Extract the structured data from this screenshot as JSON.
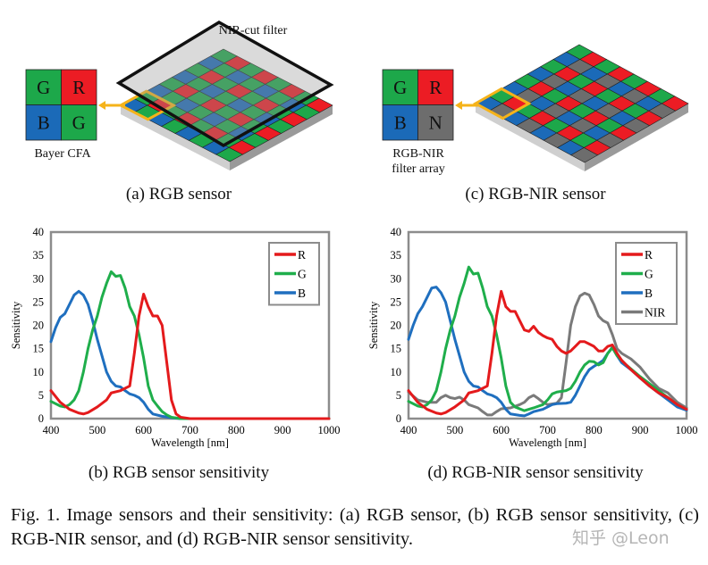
{
  "panel_a": {
    "filter_label": "NIR-cut filter",
    "cfa_label": "Bayer CFA",
    "cfa_cells": [
      "G",
      "R",
      "B",
      "G"
    ],
    "caption": "(a) RGB sensor"
  },
  "panel_c": {
    "cfa_label_1": "RGB-NIR",
    "cfa_label_2": "filter array",
    "cfa_cells": [
      "G",
      "R",
      "B",
      "N"
    ],
    "caption": "(c) RGB-NIR sensor"
  },
  "colors": {
    "G": "#1da84a",
    "R": "#ec1c24",
    "B": "#1b6ab8",
    "N": "#6d6d6d",
    "highlight": "#f5b31a",
    "frame": "#8c8c8c"
  },
  "captions": {
    "b": "(b) RGB sensor sensitivity",
    "d": "(d) RGB-NIR sensor sensitivity",
    "figure": "Fig. 1.  Image sensors and their sensitivity: (a) RGB sensor, (b) RGB sensor sensitivity, (c) RGB-NIR sensor, and (d) RGB-NIR sensor sensitivity."
  },
  "watermark": "知乎 @Leon",
  "chart_data": [
    {
      "type": "line",
      "xlabel": "Wavelength [nm]",
      "ylabel": "Sensitivity",
      "xlim": [
        400,
        1000
      ],
      "ylim": [
        0,
        40
      ],
      "xticks": [
        400,
        500,
        600,
        700,
        800,
        900,
        1000
      ],
      "yticks": [
        0,
        5,
        10,
        15,
        20,
        25,
        30,
        35,
        40
      ],
      "grid": false,
      "legend": "top-right",
      "series": [
        {
          "name": "R",
          "color": "#e41a1c",
          "x": [
            400,
            420,
            440,
            460,
            470,
            480,
            500,
            520,
            530,
            550,
            570,
            580,
            590,
            600,
            610,
            620,
            630,
            640,
            650,
            660,
            670,
            680,
            700,
            1000
          ],
          "y": [
            6,
            3.5,
            2,
            1.2,
            1,
            1.3,
            2.5,
            4,
            5.5,
            6,
            7,
            14,
            22,
            26.7,
            24,
            22,
            22,
            20,
            12,
            4,
            1,
            0.3,
            0,
            0
          ]
        },
        {
          "name": "G",
          "color": "#1fae4b",
          "x": [
            400,
            420,
            430,
            440,
            450,
            460,
            470,
            480,
            490,
            500,
            510,
            520,
            530,
            540,
            550,
            560,
            570,
            580,
            590,
            600,
            610,
            620,
            630,
            640,
            650,
            660,
            680,
            1000
          ],
          "y": [
            3.7,
            2.7,
            2.5,
            3,
            4,
            6,
            10,
            15,
            19,
            22,
            26,
            29,
            31.5,
            30.5,
            30.7,
            28,
            24,
            22,
            18,
            13,
            7,
            4,
            2.7,
            1.5,
            0.8,
            0.3,
            0,
            0
          ]
        },
        {
          "name": "B",
          "color": "#1f6fbf",
          "x": [
            400,
            410,
            420,
            430,
            440,
            450,
            460,
            470,
            480,
            490,
            500,
            510,
            520,
            530,
            540,
            550,
            560,
            570,
            580,
            590,
            600,
            610,
            620,
            640,
            660,
            680,
            1000
          ],
          "y": [
            16.5,
            19.5,
            21.7,
            22.5,
            24.5,
            26.5,
            27.3,
            26.5,
            24.5,
            21,
            17,
            13.5,
            10,
            8,
            7,
            6.8,
            6,
            5.3,
            5,
            4.5,
            3.5,
            2,
            1,
            0.5,
            0.2,
            0,
            0
          ]
        }
      ]
    },
    {
      "type": "line",
      "xlabel": "Wavelength [nm]",
      "ylabel": "Sensitivity",
      "xlim": [
        400,
        1000
      ],
      "ylim": [
        0,
        40
      ],
      "xticks": [
        400,
        500,
        600,
        700,
        800,
        900,
        1000
      ],
      "yticks": [
        0,
        5,
        10,
        15,
        20,
        25,
        30,
        35,
        40
      ],
      "grid": false,
      "legend": "top-right",
      "series": [
        {
          "name": "R",
          "color": "#e41a1c",
          "x": [
            400,
            420,
            440,
            460,
            470,
            480,
            500,
            520,
            530,
            550,
            570,
            580,
            590,
            600,
            610,
            620,
            630,
            640,
            650,
            660,
            670,
            680,
            690,
            700,
            710,
            720,
            730,
            740,
            750,
            760,
            770,
            780,
            790,
            800,
            810,
            820,
            830,
            840,
            850,
            860,
            870,
            880,
            900,
            920,
            940,
            960,
            980,
            1000
          ],
          "y": [
            6,
            3.5,
            2,
            1.2,
            1,
            1.3,
            2.5,
            4,
            5.5,
            6,
            7,
            14,
            22,
            27.3,
            24,
            23,
            23,
            21,
            19,
            18.7,
            19.8,
            18.5,
            17.8,
            17.3,
            17,
            15.5,
            14.5,
            14,
            14.5,
            15.5,
            16.5,
            16.5,
            16,
            15.5,
            14.5,
            14.5,
            15.5,
            15.8,
            14,
            12.5,
            11.5,
            10.5,
            8.7,
            7,
            5.5,
            4.5,
            3,
            2
          ]
        },
        {
          "name": "G",
          "color": "#1fae4b",
          "x": [
            400,
            420,
            430,
            440,
            450,
            460,
            470,
            480,
            490,
            500,
            510,
            520,
            530,
            540,
            550,
            560,
            570,
            580,
            590,
            600,
            610,
            620,
            630,
            650,
            670,
            690,
            700,
            710,
            720,
            740,
            750,
            760,
            770,
            780,
            790,
            800,
            810,
            820,
            830,
            840,
            850,
            870,
            900,
            920,
            940,
            960,
            980,
            1000
          ],
          "y": [
            3.7,
            2.7,
            2.5,
            3,
            4,
            6,
            10,
            15,
            19,
            22,
            26,
            29,
            32.5,
            31,
            31.2,
            28,
            24,
            22,
            18,
            13,
            7,
            3.5,
            2.5,
            1.7,
            2.3,
            3,
            4,
            5.3,
            5.7,
            6,
            6.5,
            8,
            10,
            11.5,
            12.3,
            12.2,
            11.5,
            12,
            14,
            15.2,
            13.5,
            11.5,
            9,
            7.5,
            6,
            4.5,
            3,
            2
          ]
        },
        {
          "name": "B",
          "color": "#1f6fbf",
          "x": [
            400,
            410,
            420,
            430,
            440,
            450,
            460,
            470,
            480,
            490,
            500,
            510,
            520,
            530,
            540,
            550,
            560,
            570,
            580,
            590,
            600,
            610,
            620,
            640,
            650,
            660,
            670,
            690,
            710,
            720,
            740,
            750,
            760,
            770,
            780,
            790,
            800,
            810,
            820,
            830,
            840,
            850,
            860,
            880,
            900,
            920,
            940,
            960,
            980,
            1000
          ],
          "y": [
            17,
            20,
            22.5,
            24,
            26,
            28,
            28.2,
            27,
            25,
            21,
            17,
            13.5,
            10,
            8,
            7,
            6.8,
            6,
            5.3,
            5,
            4.5,
            3.5,
            2,
            1,
            0.7,
            0.6,
            1,
            1.5,
            2,
            3,
            3.2,
            3.3,
            3.5,
            5,
            7,
            9,
            10.5,
            11.2,
            11.8,
            12.5,
            14,
            15.3,
            13.5,
            12,
            10.5,
            8.7,
            7,
            5.5,
            4,
            2.5,
            1.8
          ]
        },
        {
          "name": "NIR",
          "color": "#7a7a7a",
          "x": [
            400,
            420,
            440,
            460,
            470,
            480,
            490,
            500,
            510,
            520,
            530,
            550,
            560,
            570,
            580,
            590,
            600,
            620,
            640,
            650,
            660,
            670,
            680,
            690,
            700,
            720,
            730,
            740,
            750,
            760,
            770,
            780,
            790,
            800,
            810,
            820,
            830,
            840,
            850,
            860,
            880,
            900,
            920,
            940,
            960,
            980,
            1000
          ],
          "y": [
            5.7,
            4,
            3.5,
            3.5,
            4.5,
            5,
            4.5,
            4.3,
            4.6,
            4,
            3,
            2.3,
            1.5,
            0.8,
            0.8,
            1.5,
            2.1,
            2.3,
            3,
            3.5,
            4.5,
            5,
            4.3,
            3.5,
            3,
            3.3,
            4.5,
            12,
            20,
            24,
            26.3,
            26.9,
            26.5,
            24.5,
            22,
            21,
            20.5,
            18,
            15,
            14,
            12.8,
            11,
            8.5,
            6.5,
            5.5,
            3.5,
            2.3
          ]
        }
      ]
    }
  ]
}
